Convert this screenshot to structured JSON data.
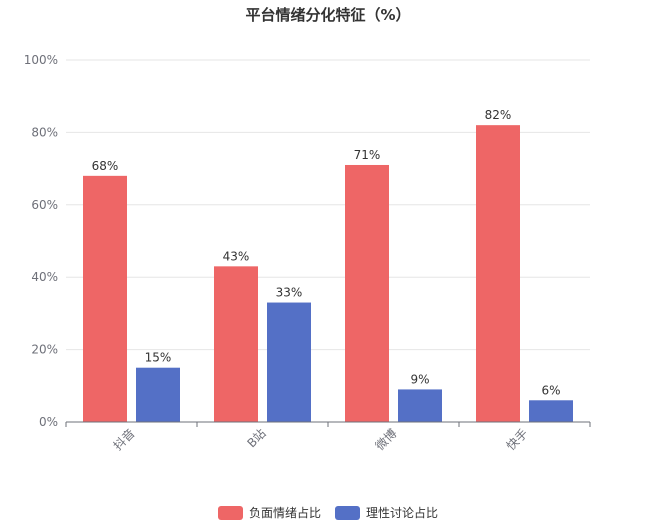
{
  "chart_data": {
    "type": "bar",
    "title": "平台情绪分化特征（%）",
    "categories": [
      "抖音",
      "B站",
      "微博",
      "快手"
    ],
    "series": [
      {
        "name": "负面情绪占比",
        "values": [
          68,
          43,
          71,
          82
        ],
        "color": "#ee6666"
      },
      {
        "name": "理性讨论占比",
        "values": [
          15,
          33,
          9,
          6
        ],
        "color": "#5470c6"
      }
    ],
    "ylim": [
      0,
      100
    ],
    "yticks": [
      "0%",
      "20%",
      "40%",
      "60%",
      "80%",
      "100%"
    ],
    "value_suffix": "%",
    "grid": true,
    "legend_position": "bottom-center"
  }
}
